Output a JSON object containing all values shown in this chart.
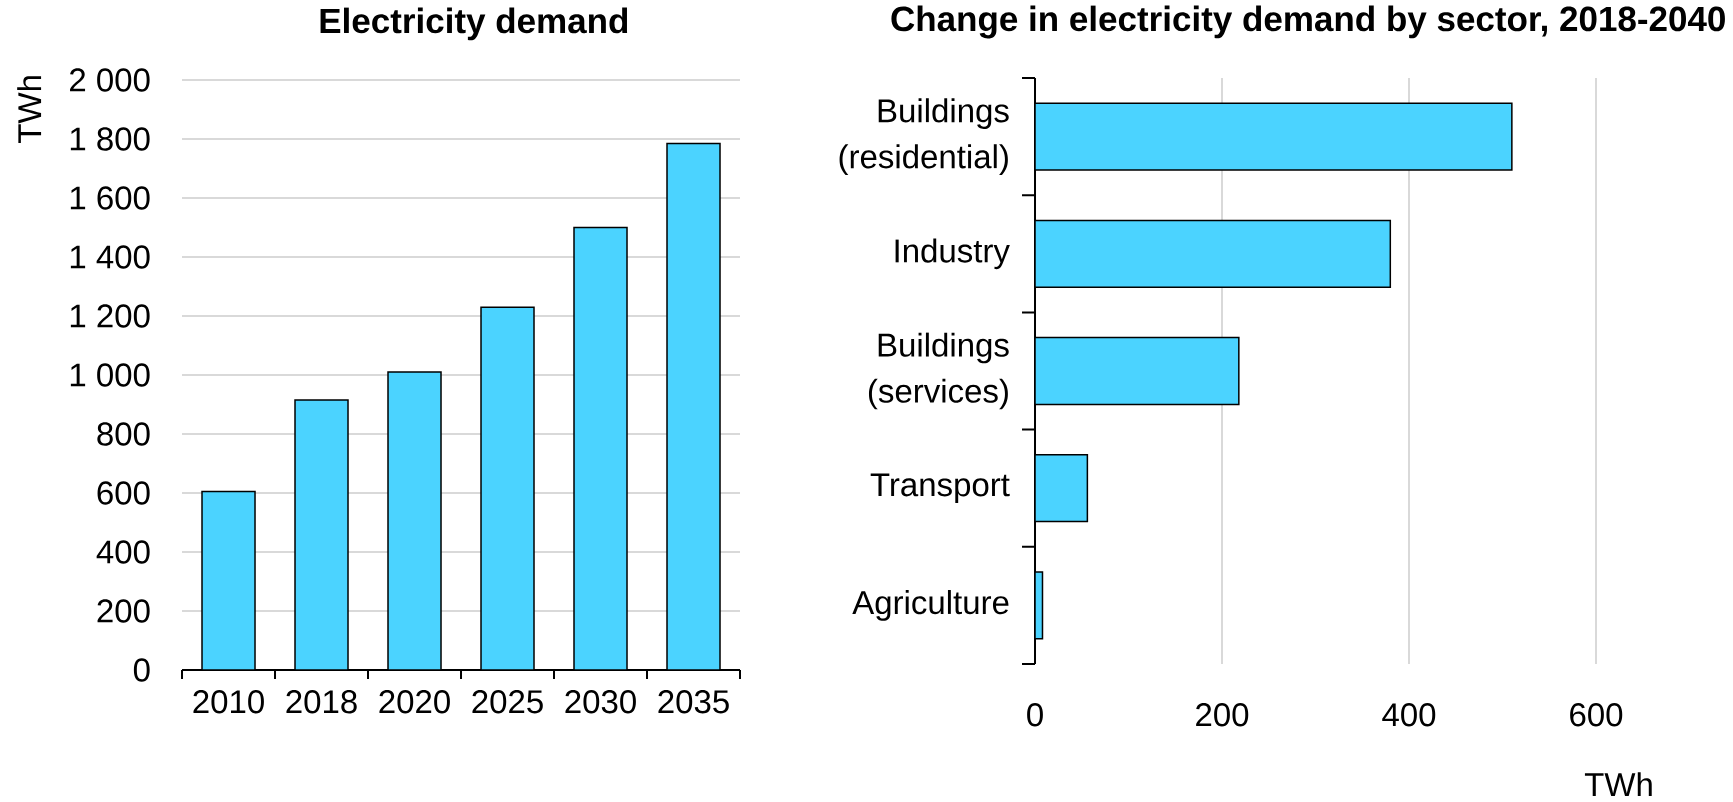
{
  "chart_data": [
    {
      "type": "bar",
      "title": "Electricity demand",
      "ylabel": "TWh",
      "categories": [
        "2010",
        "2018",
        "2020",
        "2025",
        "2030",
        "2035"
      ],
      "values": [
        605,
        915,
        1010,
        1230,
        1500,
        1785
      ],
      "color": "#4bd3ff",
      "ylim": [
        0,
        2000
      ],
      "yticks": [
        0,
        200,
        400,
        600,
        800,
        {
          "value": 1000,
          "label": "1 000"
        },
        {
          "value": 1200,
          "label": "1 200"
        },
        {
          "value": 1400,
          "label": "1 400"
        },
        {
          "value": 1600,
          "label": "1 600"
        },
        {
          "value": 1800,
          "label": "1 800"
        },
        {
          "value": 2000,
          "label": "2 000"
        }
      ],
      "grid": "y"
    },
    {
      "type": "bar",
      "orientation": "horizontal",
      "title": "Change in electricity demand by sector, 2018-2040",
      "xlabel": "TWh",
      "categories": [
        "Buildings (residential)",
        "Industry",
        "Buildings (services)",
        "Transport",
        "Agriculture"
      ],
      "values": [
        510,
        380,
        218,
        56,
        8
      ],
      "color": "#4bd3ff",
      "xlim": [
        0,
        600
      ],
      "xticks": [
        0,
        200,
        400,
        600
      ],
      "grid": "x"
    }
  ]
}
